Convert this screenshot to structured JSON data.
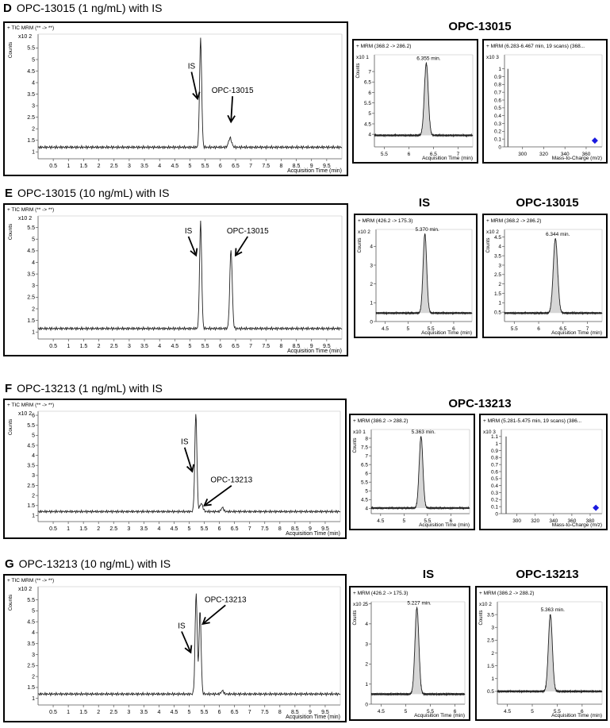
{
  "sections": [
    {
      "id": "D",
      "letter": "D",
      "title": "OPC-13015 (1 ng/mL) with IS",
      "heads": [
        "OPC-13015"
      ]
    },
    {
      "id": "E",
      "letter": "E",
      "title": "OPC-13015 (10 ng/mL) with IS",
      "heads": [
        "IS",
        "OPC-13015"
      ]
    },
    {
      "id": "F",
      "letter": "F",
      "title": "OPC-13213 (1 ng/mL) with IS",
      "heads": [
        "OPC-13213"
      ]
    },
    {
      "id": "G",
      "letter": "G",
      "title": "OPC-13213 (10 ng/mL) with IS",
      "heads": [
        "IS",
        "OPC-13213"
      ]
    }
  ],
  "chart_data": [
    {
      "panel": "D-tic",
      "type": "line",
      "header": "+ TIC MRM (** -> **)",
      "xlabel": "Acquisition Time (min)",
      "ylabel": "Counts",
      "yunit": "x10 2",
      "xlim": [
        0,
        10
      ],
      "ylim": [
        0.7,
        6.1
      ],
      "xticks": [
        0.5,
        1,
        1.5,
        2,
        2.5,
        3,
        3.5,
        4,
        4.5,
        5,
        5.5,
        6,
        6.5,
        7,
        7.5,
        8,
        8.5,
        9,
        9.5
      ],
      "yticks": [
        1,
        1.5,
        2,
        2.5,
        3,
        3.5,
        4,
        4.5,
        5,
        5.5
      ],
      "baseline": 1.2,
      "peaks": [
        {
          "x": 5.35,
          "y": 5.9,
          "w": 0.035
        },
        {
          "x": 6.32,
          "y": 1.6,
          "w": 0.05
        }
      ],
      "annotations": [
        {
          "text": "IS",
          "tx": 5.05,
          "ty": 4.6,
          "ax": 5.25,
          "ay": 3.3
        },
        {
          "text": "OPC-13015",
          "tx": 6.4,
          "ty": 3.55,
          "ax": 6.35,
          "ay": 2.3
        }
      ]
    },
    {
      "panel": "D-mrm",
      "type": "line",
      "header": "+ MRM (368.2 -> 286.2)",
      "peak_label": "6.355 min.",
      "xlabel": "Acquisition Time (min)",
      "ylabel": "Counts",
      "yunit": "x10 1",
      "xlim": [
        5.3,
        7.3
      ],
      "ylim": [
        3.4,
        7.8
      ],
      "xticks": [
        5.5,
        6,
        6.5,
        7
      ],
      "yticks": [
        4,
        4.5,
        5,
        5.5,
        6,
        6.5,
        7
      ],
      "baseline": 3.95,
      "peaks": [
        {
          "x": 6.355,
          "y": 7.4,
          "w": 0.04
        }
      ]
    },
    {
      "panel": "D-ms",
      "type": "bar",
      "header": "+ MRM (6.283-6.467 min, 19 scans) (368...",
      "xlabel": "Mass-to-Charge (m/z)",
      "yunit": "x10 3",
      "xlim": [
        283,
        375
      ],
      "ylim": [
        0,
        1.18
      ],
      "xticks": [
        300,
        320,
        340,
        360
      ],
      "yticks": [
        0,
        0.1,
        0.2,
        0.3,
        0.4,
        0.5,
        0.6,
        0.7,
        0.8,
        0.9,
        1
      ],
      "bars": [
        {
          "x": 286.2,
          "y": 1.0
        }
      ],
      "marker": {
        "x": 368.2,
        "y": 0.05
      }
    },
    {
      "panel": "E-tic",
      "type": "line",
      "header": "+ TIC MRM (** -> **)",
      "xlabel": "Acquisition Time (min)",
      "ylabel": "Counts",
      "yunit": "x10 2",
      "xlim": [
        0,
        10
      ],
      "ylim": [
        0.7,
        6.0
      ],
      "xticks": [
        0.5,
        1,
        1.5,
        2,
        2.5,
        3,
        3.5,
        4,
        4.5,
        5,
        5.5,
        6,
        6.5,
        7,
        7.5,
        8,
        8.5,
        9,
        9.5
      ],
      "yticks": [
        1,
        1.5,
        2,
        2.5,
        3,
        3.5,
        4,
        4.5,
        5,
        5.5
      ],
      "baseline": 1.15,
      "peaks": [
        {
          "x": 5.35,
          "y": 5.75,
          "w": 0.035
        },
        {
          "x": 6.35,
          "y": 4.55,
          "w": 0.04
        }
      ],
      "annotations": [
        {
          "text": "IS",
          "tx": 4.95,
          "ty": 5.25,
          "ax": 5.2,
          "ay": 4.3
        },
        {
          "text": "OPC-13015",
          "tx": 6.9,
          "ty": 5.25,
          "ax": 6.5,
          "ay": 4.3
        }
      ]
    },
    {
      "panel": "E-is",
      "type": "line",
      "header": "+ MRM (426.2 -> 175.3)",
      "peak_label": "5.370 min.",
      "xlabel": "Acquisition Time (min)",
      "ylabel": "Counts",
      "yunit": "x10 2",
      "xlim": [
        4.3,
        6.4
      ],
      "ylim": [
        0,
        4.9
      ],
      "xticks": [
        4.5,
        5,
        5.5,
        6
      ],
      "yticks": [
        0,
        1,
        2,
        3,
        4
      ],
      "baseline": 0.45,
      "peaks": [
        {
          "x": 5.37,
          "y": 4.65,
          "w": 0.04
        }
      ]
    },
    {
      "panel": "E-mrm",
      "type": "line",
      "header": "+ MRM (368.2 -> 286.2)",
      "peak_label": "6.344 min.",
      "xlabel": "Acquisition Time (min)",
      "ylabel": "Counts",
      "yunit": "x10 2",
      "xlim": [
        5.3,
        7.3
      ],
      "ylim": [
        0,
        4.9
      ],
      "xticks": [
        5.5,
        6,
        6.5,
        7
      ],
      "yticks": [
        0.5,
        1,
        1.5,
        2,
        2.5,
        3,
        3.5,
        4,
        4.5
      ],
      "baseline": 0.45,
      "peaks": [
        {
          "x": 6.344,
          "y": 4.4,
          "w": 0.045
        }
      ]
    },
    {
      "panel": "F-tic",
      "type": "line",
      "header": "+ TIC MRM (** -> **)",
      "xlabel": "Acquisition Time (min)",
      "ylabel": "Counts",
      "yunit": "x10 2",
      "xlim": [
        0,
        10
      ],
      "ylim": [
        0.7,
        6.2
      ],
      "xticks": [
        0.5,
        1,
        1.5,
        2,
        2.5,
        3,
        3.5,
        4,
        4.5,
        5,
        5.5,
        6,
        6.5,
        7,
        7.5,
        8,
        8.5,
        9,
        9.5
      ],
      "yticks": [
        1,
        1.5,
        2,
        2.5,
        3,
        3.5,
        4,
        4.5,
        5,
        5.5,
        6
      ],
      "baseline": 1.2,
      "peaks": [
        {
          "x": 5.22,
          "y": 6.1,
          "w": 0.035
        },
        {
          "x": 5.4,
          "y": 1.6,
          "w": 0.05
        },
        {
          "x": 6.1,
          "y": 1.4,
          "w": 0.04
        }
      ],
      "annotations": [
        {
          "text": "IS",
          "tx": 4.85,
          "ty": 4.55,
          "ax": 5.1,
          "ay": 3.2
        },
        {
          "text": "OPC-13213",
          "tx": 6.4,
          "ty": 2.65,
          "ax": 5.5,
          "ay": 1.5
        }
      ]
    },
    {
      "panel": "F-mrm",
      "type": "line",
      "header": "+ MRM (386.2 -> 288.2)",
      "peak_label": "5.363 min.",
      "xlabel": "Acquisition Time (min)",
      "ylabel": "Counts",
      "yunit": "x10 1",
      "xlim": [
        4.3,
        6.4
      ],
      "ylim": [
        3.7,
        8.5
      ],
      "xticks": [
        4.5,
        5,
        5.5,
        6
      ],
      "yticks": [
        4,
        4.5,
        5,
        5.5,
        6,
        6.5,
        7,
        7.5,
        8
      ],
      "baseline": 4.02,
      "peaks": [
        {
          "x": 5.363,
          "y": 8.1,
          "w": 0.04
        }
      ]
    },
    {
      "panel": "F-ms",
      "type": "bar",
      "header": "+ MRM (5.281-5.475 min, 19 scans) (386...",
      "xlabel": "Mass-to-Charge (m/z)",
      "yunit": "x10 3",
      "xlim": [
        283,
        393
      ],
      "ylim": [
        0,
        1.2
      ],
      "xticks": [
        300,
        320,
        340,
        360,
        380
      ],
      "yticks": [
        0,
        0.1,
        0.2,
        0.3,
        0.4,
        0.5,
        0.6,
        0.7,
        0.8,
        0.9,
        1,
        1.1
      ],
      "bars": [
        {
          "x": 288.2,
          "y": 1.1
        }
      ],
      "marker": {
        "x": 386.2,
        "y": 0.05
      }
    },
    {
      "panel": "G-tic",
      "type": "line",
      "header": "+ TIC MRM (** -> **)",
      "xlabel": "Acquisition Time (min)",
      "ylabel": "Counts",
      "yunit": "x10 2",
      "xlim": [
        0,
        10
      ],
      "ylim": [
        0.7,
        6.1
      ],
      "xticks": [
        0.5,
        1,
        1.5,
        2,
        2.5,
        3,
        3.5,
        4,
        4.5,
        5,
        5.5,
        6,
        6.5,
        7,
        7.5,
        8,
        8.5,
        9,
        9.5
      ],
      "yticks": [
        1,
        1.5,
        2,
        2.5,
        3,
        3.5,
        4,
        4.5,
        5,
        5.5
      ],
      "baseline": 1.2,
      "peaks": [
        {
          "x": 5.23,
          "y": 5.8,
          "w": 0.035
        },
        {
          "x": 5.36,
          "y": 5.0,
          "w": 0.035
        },
        {
          "x": 6.1,
          "y": 1.35,
          "w": 0.04
        }
      ],
      "annotations": [
        {
          "text": "IS",
          "tx": 4.75,
          "ty": 4.2,
          "ax": 5.05,
          "ay": 3.1
        },
        {
          "text": "OPC-13213",
          "tx": 6.2,
          "ty": 5.4,
          "ax": 5.45,
          "ay": 4.4
        }
      ]
    },
    {
      "panel": "G-is",
      "type": "line",
      "header": "+ MRM (426.2 -> 175.3)",
      "peak_label": "5.227 min.",
      "xlabel": "Acquisition Time (min)",
      "ylabel": "Counts",
      "yunit": "x10 2",
      "xlim": [
        4.3,
        6.2
      ],
      "ylim": [
        0,
        5.1
      ],
      "xticks": [
        4.5,
        5,
        5.5,
        6
      ],
      "yticks": [
        0,
        1,
        2,
        3,
        4,
        5
      ],
      "baseline": 0.5,
      "peaks": [
        {
          "x": 5.227,
          "y": 4.8,
          "w": 0.04
        }
      ]
    },
    {
      "panel": "G-mrm",
      "type": "line",
      "header": "+ MRM (386.2 -> 288.2)",
      "peak_label": "5.363 min.",
      "xlabel": "Acquisition Time (min)",
      "ylabel": "Counts",
      "yunit": "x10 2",
      "xlim": [
        4.3,
        6.4
      ],
      "ylim": [
        0,
        4.0
      ],
      "xticks": [
        4.5,
        5,
        5.5,
        6
      ],
      "yticks": [
        0.5,
        1,
        1.5,
        2,
        2.5,
        3,
        3.5
      ],
      "baseline": 0.5,
      "peaks": [
        {
          "x": 5.363,
          "y": 3.5,
          "w": 0.04
        }
      ]
    }
  ]
}
